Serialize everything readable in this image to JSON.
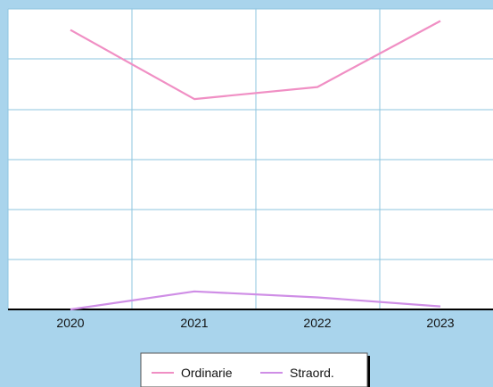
{
  "chart_data": {
    "type": "line",
    "categories": [
      "2020",
      "2021",
      "2022",
      "2023"
    ],
    "series": [
      {
        "name": "Ordinarie",
        "values": [
          93,
          70,
          74,
          96
        ],
        "color": "#f08fc4"
      },
      {
        "name": "Straord.",
        "values": [
          0,
          6,
          4,
          1
        ],
        "color": "#cf8ee6"
      }
    ],
    "ylim": [
      0,
      100
    ],
    "grid": true,
    "legend_position": "bottom-center",
    "colors": {
      "background": "#a9d4ec",
      "plot_background": "#ffffff",
      "grid": "#8ec5df",
      "axis": "#000000"
    }
  }
}
